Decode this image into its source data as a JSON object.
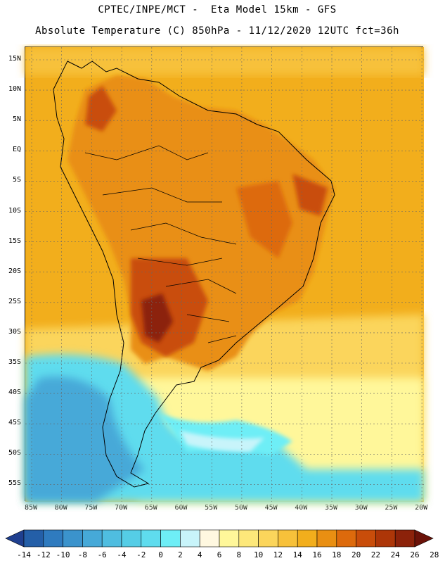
{
  "header": {
    "line1": "CPTEC/INPE/MCT -  Eta Model 15km - GFS",
    "line2": "Absolute Temperature (C) 850hPa - 11/12/2020 12UTC fct=36h"
  },
  "map": {
    "region": "South America",
    "variable": "Absolute Temperature (C)",
    "level": "850hPa",
    "lat_labels": [
      "15N",
      "10N",
      "5N",
      "EQ",
      "5S",
      "10S",
      "15S",
      "20S",
      "25S",
      "30S",
      "35S",
      "40S",
      "45S",
      "50S",
      "55S"
    ],
    "lon_labels": [
      "85W",
      "80W",
      "75W",
      "70W",
      "65W",
      "60W",
      "55W",
      "50W",
      "45W",
      "40W",
      "35W",
      "30W",
      "25W",
      "20W"
    ]
  },
  "colorbar": {
    "labels": [
      "-14",
      "-12",
      "-10",
      "-8",
      "-6",
      "-4",
      "-2",
      "0",
      "2",
      "4",
      "6",
      "8",
      "10",
      "12",
      "14",
      "16",
      "18",
      "20",
      "22",
      "24",
      "26",
      "28"
    ],
    "colors": [
      "#1f3f8f",
      "#245fa8",
      "#2f7bbf",
      "#3b93cc",
      "#46a9d8",
      "#4fbde0",
      "#55cde6",
      "#5fdcee",
      "#6eeef6",
      "#c8f4fa",
      "#fff8e0",
      "#fff79a",
      "#fde87a",
      "#fbd55b",
      "#f7c13a",
      "#f2ae1c",
      "#e98f12",
      "#dd6a0c",
      "#c94d0a",
      "#ad3608",
      "#8c220a",
      "#6b1208"
    ]
  }
}
